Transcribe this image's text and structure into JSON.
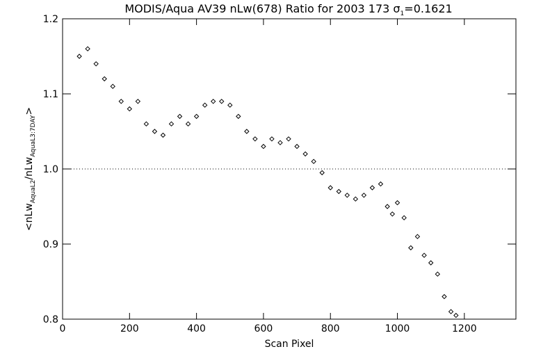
{
  "chart_data": {
    "type": "scatter",
    "title": {
      "prefix": "MODIS/Aqua AV39 nLw(678) Ratio for 2003 173 ",
      "sigma": "σ",
      "sigma_sub": "1",
      "suffix": "=0.1621"
    },
    "xlabel": "Scan Pixel",
    "ylabel": {
      "part1": "<nLw",
      "sub1": "AquaL2",
      "part2": "/nLw",
      "sub2": "AquaL3:7DAY",
      "part3": ">"
    },
    "xlim": [
      0,
      1354
    ],
    "ylim": [
      0.8,
      1.2
    ],
    "xticks": [
      0,
      200,
      400,
      600,
      800,
      1000,
      1200
    ],
    "xtick_labels": [
      "0",
      "200",
      "400",
      "600",
      "800",
      "1000",
      "1200"
    ],
    "yticks": [
      0.8,
      0.9,
      1.0,
      1.1,
      1.2
    ],
    "ytick_labels": [
      "0.8",
      "0.9",
      "1.0",
      "1.1",
      "1.2"
    ],
    "reference_line": {
      "y": 1.0,
      "style": "dotted"
    },
    "marker": "diamond",
    "grid": false,
    "series": [
      {
        "x": [
          50,
          75,
          100,
          125,
          150,
          175,
          200,
          225,
          250,
          275,
          300,
          325,
          350,
          375,
          400,
          425,
          450,
          475,
          500,
          525,
          550,
          575,
          600,
          625,
          650,
          675,
          700,
          725,
          750,
          775,
          800,
          825,
          850,
          875,
          900,
          925,
          950,
          970,
          985,
          1000,
          1020,
          1040,
          1060,
          1080,
          1100,
          1120,
          1140,
          1160,
          1175
        ],
        "y": [
          1.15,
          1.16,
          1.14,
          1.12,
          1.11,
          1.09,
          1.08,
          1.09,
          1.06,
          1.05,
          1.045,
          1.06,
          1.07,
          1.06,
          1.07,
          1.085,
          1.09,
          1.09,
          1.085,
          1.07,
          1.05,
          1.04,
          1.03,
          1.04,
          1.035,
          1.04,
          1.03,
          1.02,
          1.01,
          0.995,
          0.975,
          0.97,
          0.965,
          0.96,
          0.965,
          0.975,
          0.98,
          0.95,
          0.94,
          0.955,
          0.935,
          0.895,
          0.91,
          0.885,
          0.875,
          0.86,
          0.83,
          0.81,
          0.805
        ]
      }
    ]
  }
}
